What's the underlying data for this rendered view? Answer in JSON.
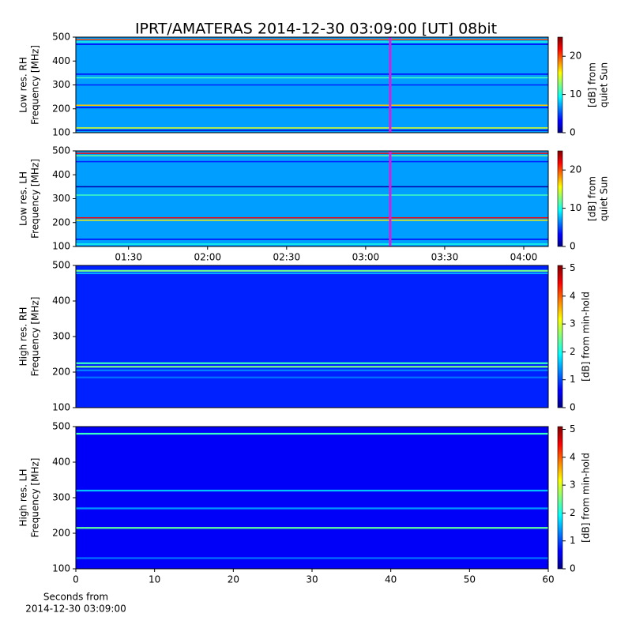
{
  "chart_data": [
    {
      "type": "heatmap",
      "title": "IPRT/AMATERAS 2014-12-30 03:09:00 [UT]   08bit",
      "ylabel": [
        "Low res. RH",
        "Frequency [MHz]"
      ],
      "xlim": [
        70,
        249.3
      ],
      "ylim": [
        100,
        500
      ],
      "yticks": [
        100,
        200,
        300,
        400,
        500
      ],
      "floor": 7,
      "bands": [
        {
          "freq": 490,
          "value": 20
        },
        {
          "freq": 480,
          "value": 10
        },
        {
          "freq": 470,
          "value": 3
        },
        {
          "freq": 345,
          "value": 3
        },
        {
          "freq": 330,
          "value": 11
        },
        {
          "freq": 300,
          "value": 4
        },
        {
          "freq": 215,
          "value": 17
        },
        {
          "freq": 205,
          "value": 3
        },
        {
          "freq": 120,
          "value": 15
        },
        {
          "freq": 110,
          "value": 2
        }
      ],
      "marker_x": 189.3,
      "marker_color": "#d020e0",
      "clim": [
        0,
        25
      ],
      "cticks": [
        0,
        10,
        20
      ],
      "clabel": [
        "[dB] from",
        "quiet Sun"
      ],
      "colormap": "jet"
    },
    {
      "type": "heatmap",
      "ylabel": [
        "Low res. LH",
        "Frequency [MHz]"
      ],
      "xlim": [
        70,
        249.3
      ],
      "ylim": [
        100,
        500
      ],
      "yticks": [
        100,
        200,
        300,
        400,
        500
      ],
      "xticks": [
        {
          "value": 90,
          "label": "01:30"
        },
        {
          "value": 120,
          "label": "02:00"
        },
        {
          "value": 150,
          "label": "02:30"
        },
        {
          "value": 180,
          "label": "03:00"
        },
        {
          "value": 210,
          "label": "03:30"
        },
        {
          "value": 240,
          "label": "04:00"
        }
      ],
      "floor": 7,
      "bands": [
        {
          "freq": 490,
          "value": 22
        },
        {
          "freq": 480,
          "value": 12
        },
        {
          "freq": 455,
          "value": 4
        },
        {
          "freq": 350,
          "value": 1
        },
        {
          "freq": 315,
          "value": 11
        },
        {
          "freq": 220,
          "value": 22
        },
        {
          "freq": 210,
          "value": 16
        },
        {
          "freq": 130,
          "value": 3
        },
        {
          "freq": 110,
          "value": 10
        }
      ],
      "marker_x": 189.3,
      "marker_color": "#d020e0",
      "clim": [
        0,
        25
      ],
      "cticks": [
        0,
        10,
        20
      ],
      "clabel": [
        "[dB] from",
        "quiet Sun"
      ],
      "colormap": "jet"
    },
    {
      "type": "heatmap",
      "ylabel": [
        "High res. RH",
        "Frequency [MHz]"
      ],
      "xlim": [
        0,
        60
      ],
      "ylim": [
        100,
        500
      ],
      "yticks": [
        100,
        200,
        300,
        400,
        500
      ],
      "floor": 0.8,
      "bands": [
        {
          "freq": 485,
          "value": 2.5
        },
        {
          "freq": 478,
          "value": 1.5
        },
        {
          "freq": 225,
          "value": 2.2
        },
        {
          "freq": 215,
          "value": 2.5
        },
        {
          "freq": 205,
          "value": 1.3
        },
        {
          "freq": 185,
          "value": 1.2
        }
      ],
      "clim": [
        0,
        5.1
      ],
      "cticks": [
        0,
        1,
        2,
        3,
        4,
        5
      ],
      "clabel": [
        "[dB] from min-hold"
      ],
      "colormap": "jet"
    },
    {
      "type": "heatmap",
      "ylabel": [
        "High res. LH",
        "Frequency [MHz]"
      ],
      "xlim": [
        0,
        60
      ],
      "ylim": [
        100,
        500
      ],
      "yticks": [
        100,
        200,
        300,
        400,
        500
      ],
      "xticks": [
        0,
        10,
        20,
        30,
        40,
        50,
        60
      ],
      "xlabel": [
        "Seconds from",
        "2014-12-30 03:09:00"
      ],
      "floor": 0.6,
      "bands": [
        {
          "freq": 480,
          "value": 2.2
        },
        {
          "freq": 320,
          "value": 1.6
        },
        {
          "freq": 270,
          "value": 1.4
        },
        {
          "freq": 215,
          "value": 2.4
        },
        {
          "freq": 130,
          "value": 1.2
        }
      ],
      "clim": [
        0,
        5.1
      ],
      "cticks": [
        0,
        1,
        2,
        3,
        4,
        5
      ],
      "clabel": [
        "[dB] from min-hold"
      ],
      "colormap": "jet"
    }
  ]
}
